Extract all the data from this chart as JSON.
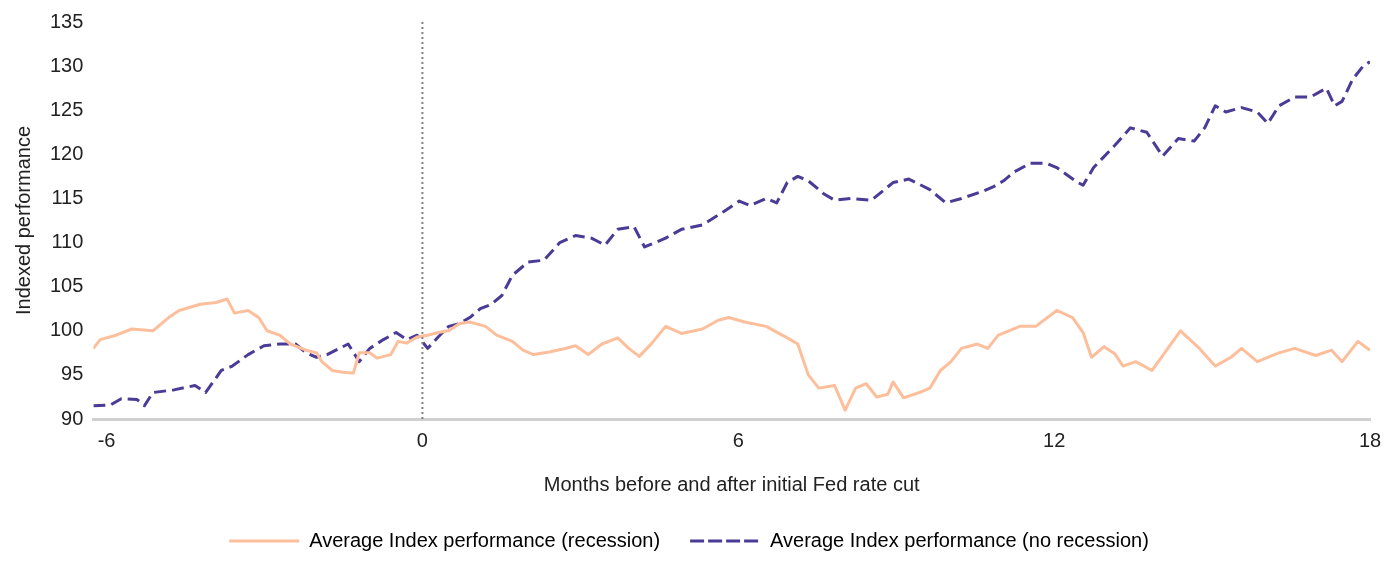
{
  "chart_data": {
    "type": "line",
    "xlabel": "Months before and after initial Fed rate cut",
    "ylabel": "Indexed performance",
    "xlim": [
      -6.25,
      18
    ],
    "xticks": [
      -6,
      0,
      6,
      12,
      18
    ],
    "ylim": [
      90,
      135
    ],
    "yticks": [
      90,
      95,
      100,
      105,
      110,
      115,
      120,
      125,
      130,
      135
    ],
    "grid": false,
    "legend": "bottom",
    "marker": "none",
    "ref_lines": [
      {
        "axis": "x",
        "value": 0,
        "color": "#808080",
        "line_style": "dotted"
      }
    ],
    "series": [
      {
        "name": "Average Index performance (recession)",
        "color": "#fdbf9b",
        "line_style": "solid",
        "x": [
          -6.25,
          -6.12,
          -5.82,
          -5.52,
          -5.12,
          -4.82,
          -4.62,
          -4.22,
          -3.92,
          -3.71,
          -3.57,
          -3.31,
          -3.11,
          -2.95,
          -2.71,
          -2.51,
          -2.21,
          -2.01,
          -1.91,
          -1.71,
          -1.51,
          -1.31,
          -1.2,
          -1.0,
          -0.86,
          -0.6,
          -0.46,
          -0.3,
          -0.1,
          0.1,
          0.3,
          0.5,
          0.7,
          0.9,
          1.2,
          1.41,
          1.71,
          1.91,
          2.11,
          2.41,
          2.71,
          2.91,
          3.15,
          3.41,
          3.71,
          3.92,
          4.12,
          4.36,
          4.62,
          4.92,
          5.32,
          5.62,
          5.82,
          6.12,
          6.53,
          6.93,
          7.13,
          7.33,
          7.53,
          7.83,
          8.03,
          8.23,
          8.43,
          8.63,
          8.84,
          8.94,
          9.14,
          9.44,
          9.64,
          9.84,
          10.04,
          10.24,
          10.54,
          10.74,
          10.94,
          11.14,
          11.35,
          11.65,
          12.05,
          12.35,
          12.55,
          12.71,
          12.95,
          13.15,
          13.31,
          13.55,
          13.86,
          14.16,
          14.4,
          14.76,
          15.06,
          15.36,
          15.56,
          15.86,
          16.27,
          16.57,
          16.97,
          17.27,
          17.47,
          17.77,
          18.0
        ],
        "values": [
          98,
          99,
          99.5,
          100.2,
          100,
          101.5,
          102.3,
          103,
          103.2,
          103.6,
          102,
          102.3,
          101.5,
          100,
          99.5,
          98.5,
          97.8,
          97.5,
          96.5,
          95.5,
          95.3,
          95.2,
          97.5,
          97.5,
          96.9,
          97.3,
          98.8,
          98.6,
          99.3,
          99.5,
          99.8,
          100,
          100.8,
          101,
          100.5,
          99.5,
          98.8,
          97.8,
          97.3,
          97.6,
          98,
          98.3,
          97.3,
          98.5,
          99.2,
          98,
          97.1,
          98.6,
          100.5,
          99.7,
          100.2,
          101.2,
          101.5,
          101,
          100.5,
          99.2,
          98.5,
          95,
          93.5,
          93.8,
          91,
          93.5,
          94,
          92.5,
          92.8,
          94.2,
          92.4,
          93,
          93.5,
          95.5,
          96.5,
          98,
          98.5,
          98,
          99.5,
          100,
          100.5,
          100.5,
          102.3,
          101.5,
          99.8,
          97,
          98.2,
          97.4,
          96,
          96.5,
          95.5,
          98,
          100,
          98,
          96,
          97,
          98,
          96.5,
          97.5,
          98,
          97.2,
          97.8,
          96.5,
          98.8,
          97.8
        ]
      },
      {
        "name": "Average Index performance (no recession)",
        "color": "#4b3a96",
        "line_style": "dashed",
        "x": [
          -6.25,
          -5.92,
          -5.72,
          -5.42,
          -5.28,
          -5.12,
          -4.72,
          -4.32,
          -4.12,
          -3.82,
          -3.61,
          -3.31,
          -3.01,
          -2.71,
          -2.41,
          -2.21,
          -2.01,
          -1.81,
          -1.41,
          -1.2,
          -1.0,
          -0.74,
          -0.5,
          -0.3,
          -0.1,
          0.1,
          0.3,
          0.5,
          0.7,
          0.9,
          1.1,
          1.31,
          1.51,
          1.71,
          2.01,
          2.31,
          2.61,
          2.91,
          3.21,
          3.47,
          3.71,
          4.02,
          4.22,
          4.62,
          4.92,
          5.32,
          5.72,
          6.02,
          6.22,
          6.53,
          6.73,
          6.93,
          7.13,
          7.33,
          7.63,
          7.83,
          8.13,
          8.53,
          8.94,
          9.24,
          9.64,
          9.94,
          10.24,
          10.64,
          10.84,
          11.04,
          11.24,
          11.55,
          11.85,
          12.05,
          12.45,
          12.55,
          12.75,
          13.15,
          13.45,
          13.76,
          14.06,
          14.36,
          14.66,
          14.86,
          15.06,
          15.26,
          15.56,
          15.86,
          16.06,
          16.27,
          16.57,
          16.87,
          17.17,
          17.33,
          17.47,
          17.67,
          17.87,
          18.0
        ],
        "values": [
          91.5,
          91.6,
          92.3,
          92.2,
          91.5,
          93,
          93.3,
          93.8,
          93,
          95.5,
          96,
          97.3,
          98.3,
          98.5,
          98.5,
          97.5,
          97,
          97.3,
          98.5,
          96.5,
          98,
          99,
          99.8,
          99,
          99.5,
          98,
          99.3,
          100.5,
          100.8,
          101.5,
          102.5,
          103,
          104,
          106.3,
          107.8,
          108,
          110,
          110.8,
          110.5,
          109.7,
          111.5,
          111.8,
          109.5,
          110.5,
          111.5,
          112,
          113.5,
          114.7,
          114.2,
          115,
          114.5,
          116.8,
          117.5,
          117,
          115.5,
          114.8,
          115,
          114.8,
          116.8,
          117.2,
          116,
          114.5,
          115,
          115.8,
          116.3,
          117,
          118,
          119,
          119,
          118.5,
          116.8,
          116.5,
          118.5,
          121,
          123,
          122.5,
          119.8,
          121.8,
          121.5,
          123,
          125.5,
          124.8,
          125.3,
          124.8,
          123.5,
          125.5,
          126.5,
          126.5,
          127.5,
          125.5,
          126,
          128.5,
          130,
          130.5
        ]
      }
    ]
  }
}
